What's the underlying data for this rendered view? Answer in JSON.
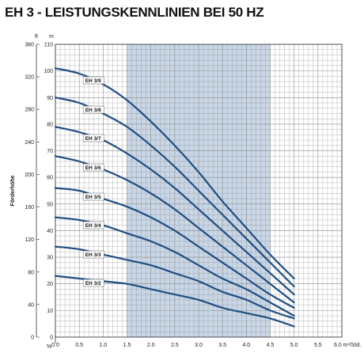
{
  "chart_data": {
    "type": "line",
    "title": "EH 3 - LEISTUNGSKENNLINIEN BEI 50 HZ",
    "ylabel": "Förderhöhe",
    "ft_unit": "ft",
    "m_unit": "m",
    "pct_unit": "%",
    "x_unit_label": "6.0 m³/Std.",
    "xlim": [
      0,
      6
    ],
    "ylim": [
      0,
      110
    ],
    "ft_lim": [
      0,
      360
    ],
    "grid": true,
    "shaded_range": [
      1.5,
      4.5
    ],
    "x_ticks": [
      "0.0",
      "0.5",
      "1.0",
      "1.5",
      "2.0",
      "2.5",
      "3.0",
      "3.5",
      "4.0",
      "4.5",
      "5.0",
      "5.5"
    ],
    "m_ticks": [
      "0",
      "10",
      "20",
      "30",
      "40",
      "50",
      "60",
      "70",
      "80",
      "90",
      "100",
      "110"
    ],
    "ft_ticks": [
      "0",
      "40",
      "80",
      "120",
      "160",
      "200",
      "240",
      "280",
      "320",
      "360"
    ],
    "x": [
      0,
      0.5,
      1.0,
      1.5,
      2.0,
      2.5,
      3.0,
      3.5,
      4.0,
      4.5,
      5.0
    ],
    "series": [
      {
        "name": "EH 3/9",
        "values": [
          101,
          99,
          95,
          89,
          81,
          72,
          62,
          51,
          41,
          31,
          22
        ]
      },
      {
        "name": "EH 3/8",
        "values": [
          90,
          88,
          84,
          79,
          72,
          64,
          55,
          46,
          37,
          28,
          19
        ]
      },
      {
        "name": "EH 3/7",
        "values": [
          79,
          77,
          74,
          69,
          63,
          56,
          48,
          40,
          32,
          24,
          16
        ]
      },
      {
        "name": "EH 3/6",
        "values": [
          68,
          66,
          63,
          59,
          54,
          48,
          41,
          34,
          27,
          20,
          13
        ]
      },
      {
        "name": "EH 3/5",
        "values": [
          56,
          55,
          52,
          49,
          45,
          40,
          34,
          28,
          22,
          16,
          11
        ]
      },
      {
        "name": "EH 3/4",
        "values": [
          45,
          44,
          42,
          39,
          36,
          32,
          27,
          22,
          18,
          13,
          8
        ]
      },
      {
        "name": "EH 3/3",
        "values": [
          34,
          33,
          31,
          29,
          27,
          24,
          21,
          17,
          14,
          10,
          7
        ]
      },
      {
        "name": "EH 3/2",
        "values": [
          23,
          22,
          21,
          20,
          18,
          16,
          14,
          11,
          9,
          7,
          4
        ]
      }
    ],
    "colors": {
      "curve": "#1f4e82",
      "shade": "#c8d6e6",
      "grid": "#8a8a8a",
      "frame": "#333333"
    }
  }
}
